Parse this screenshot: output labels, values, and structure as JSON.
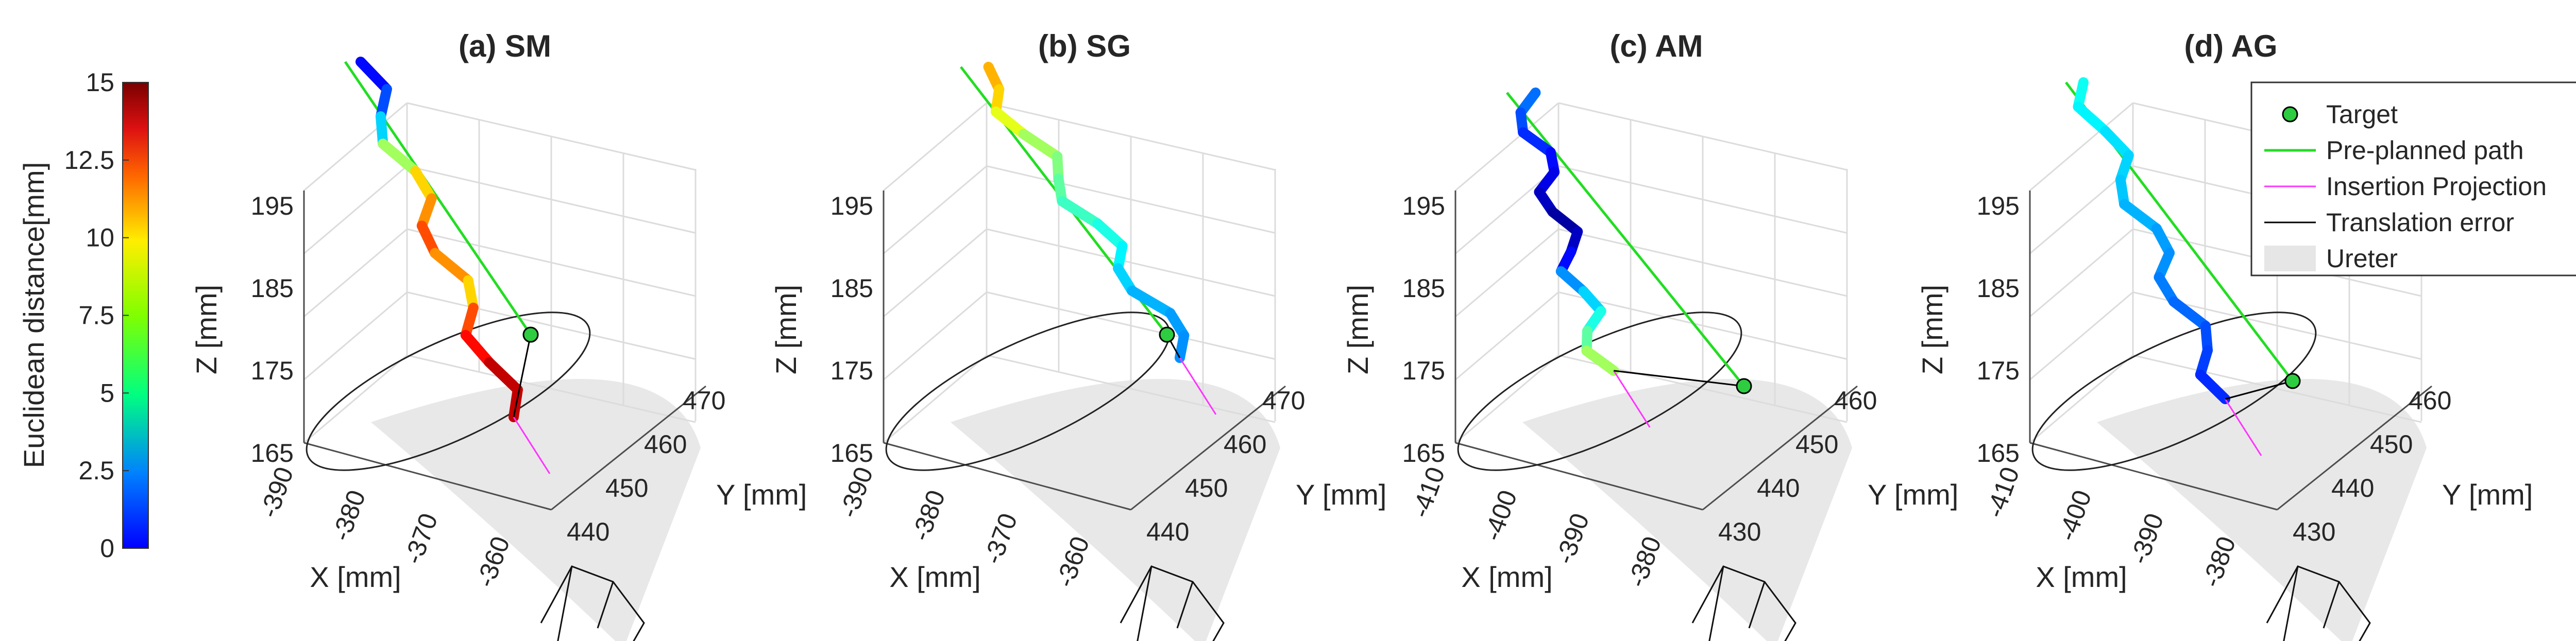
{
  "chart_data": {
    "type": "3d-line",
    "colorbar": {
      "label": "Euclidean distance[mm]",
      "ticks": [
        "15",
        "12.5",
        "10",
        "7.5",
        "5",
        "2.5",
        "0"
      ],
      "range": [
        0,
        15
      ],
      "colormap": "jet"
    },
    "legend": {
      "entries": [
        {
          "label": "Target",
          "color": "#2ecc40",
          "marker": "circle"
        },
        {
          "label": "Pre-planned path",
          "color": "#22dd22",
          "marker": "line"
        },
        {
          "label": "Insertion Projection",
          "color": "#ff33ff",
          "marker": "line"
        },
        {
          "label": "Translation error",
          "color": "#000000",
          "marker": "line"
        },
        {
          "label": "Ureter",
          "color": "#e6e6e6",
          "marker": "patch"
        }
      ]
    },
    "panels": [
      {
        "title": "(a) SM",
        "zlabel": "Z [mm]",
        "xlabel": "X [mm]",
        "ylabel": "Y [mm]",
        "zticks": [
          "195",
          "185",
          "175",
          "165"
        ],
        "xticks": [
          "-390",
          "-380",
          "-370",
          "-360"
        ],
        "yticks": [
          "440",
          "450",
          "460",
          "470"
        ],
        "trajectory_error_mm": [
          1,
          2,
          3,
          5,
          8,
          10,
          11,
          12,
          11,
          10,
          12,
          13,
          14,
          14
        ]
      },
      {
        "title": "(b) SG",
        "zlabel": "Z [mm]",
        "xlabel": "X [mm]",
        "ylabel": "Y [mm]",
        "zticks": [
          "195",
          "185",
          "175",
          "165"
        ],
        "xticks": [
          "-390",
          "-380",
          "-370",
          "-360"
        ],
        "yticks": [
          "440",
          "450",
          "460",
          "470"
        ],
        "trajectory_error_mm": [
          11,
          10.5,
          10,
          9,
          8,
          7.5,
          7,
          6.5,
          6,
          5.5,
          5,
          4.5,
          4.2,
          4
        ]
      },
      {
        "title": "(c) AM",
        "zlabel": "Z [mm]",
        "xlabel": "X [mm]",
        "ylabel": "Y [mm]",
        "zticks": [
          "195",
          "185",
          "175",
          "165"
        ],
        "xticks": [
          "-410",
          "-400",
          "-390",
          "-380"
        ],
        "yticks": [
          "430",
          "440",
          "450",
          "460"
        ],
        "trajectory_error_mm": [
          4,
          3.5,
          3,
          2.5,
          2,
          1.5,
          1,
          0.5,
          1,
          2,
          4,
          5,
          6,
          7,
          8
        ]
      },
      {
        "title": "(d) AG",
        "zlabel": "Z [mm]",
        "xlabel": "X [mm]",
        "ylabel": "Y [mm]",
        "zticks": [
          "195",
          "185",
          "175",
          "165"
        ],
        "xticks": [
          "-410",
          "-400",
          "-390",
          "-380"
        ],
        "yticks": [
          "430",
          "440",
          "450",
          "460"
        ],
        "trajectory_error_mm": [
          6,
          5.8,
          5.5,
          5.2,
          5,
          4.8,
          4.5,
          4.2,
          4,
          3.7,
          3.4,
          3,
          2.8,
          2.5
        ]
      }
    ]
  }
}
